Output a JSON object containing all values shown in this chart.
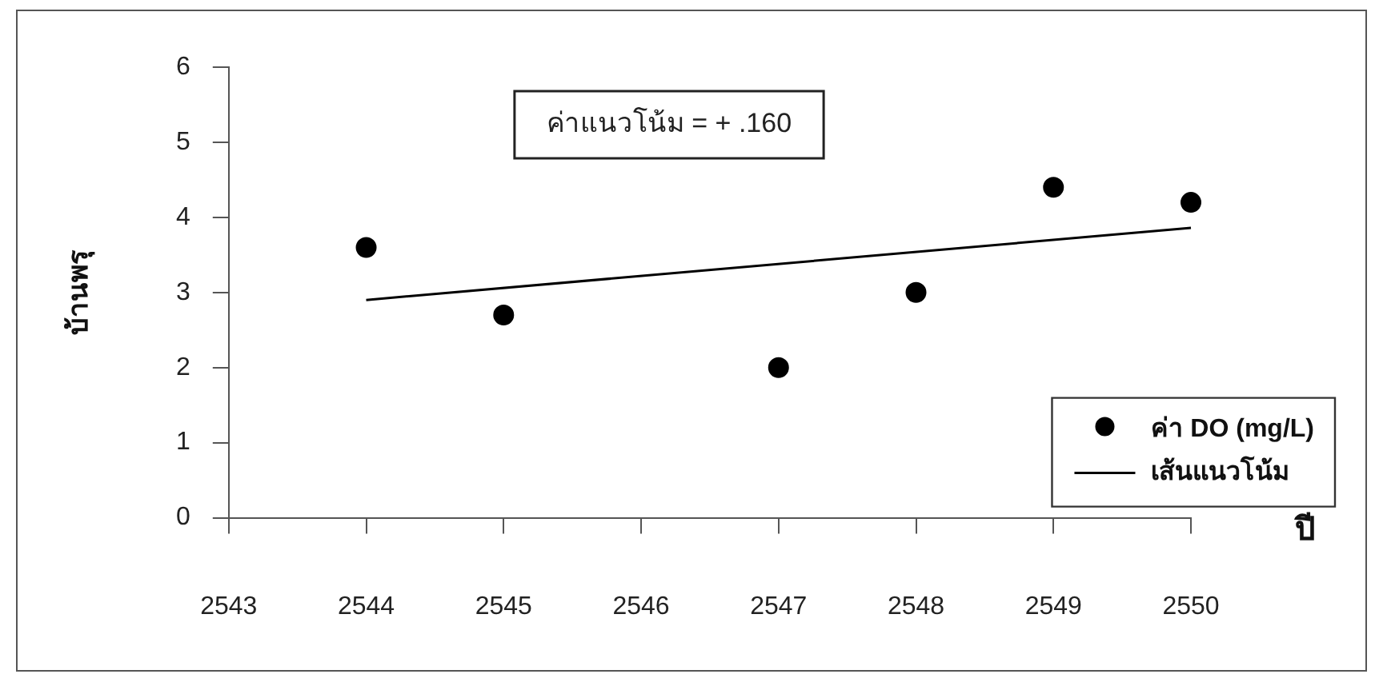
{
  "chart_data": {
    "type": "scatter",
    "xlabel": "ปี",
    "ylabel": "บ้านพรุ",
    "annotations": [
      "ค่าแนวโน้ม = + .160"
    ],
    "x": [
      2544,
      2545,
      2547,
      2548,
      2549,
      2550
    ],
    "series": [
      {
        "name": "ค่า DO (mg/L)",
        "color": "#000000",
        "marker": "circle",
        "values": [
          3.6,
          2.7,
          2.0,
          3.0,
          4.4,
          4.2
        ]
      },
      {
        "name": "เส้นแนวโน้ม",
        "type": "line",
        "color": "#000000",
        "marker": "none",
        "x": [
          2544,
          2550
        ],
        "values": [
          2.9,
          3.86
        ]
      }
    ],
    "xlim": [
      2543,
      2550
    ],
    "xticks": [
      2543,
      2544,
      2545,
      2546,
      2547,
      2548,
      2549,
      2550
    ],
    "ylim": [
      0,
      6
    ],
    "yticks": [
      0,
      1,
      2,
      3,
      4,
      5,
      6
    ],
    "grid": false,
    "legend": "bottom right",
    "line_style": "solid"
  }
}
